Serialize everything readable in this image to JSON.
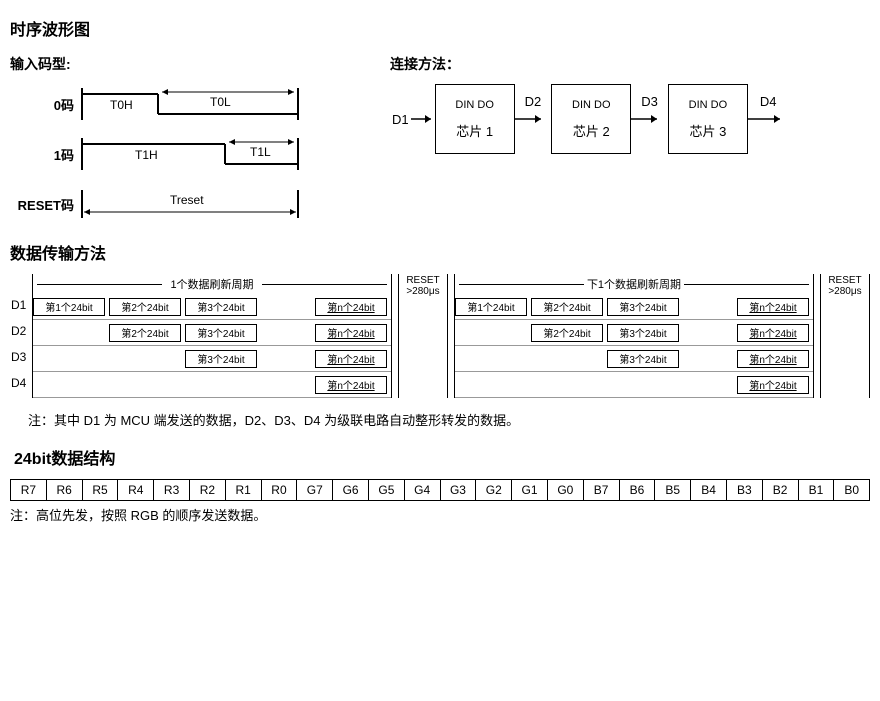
{
  "titles": {
    "timing": "时序波形图",
    "input_codes": "输入码型:",
    "connection": "连接方法：",
    "transmission": "数据传输方法",
    "bit_struct": "24bit数据结构"
  },
  "codes": {
    "code0": {
      "label": "0码",
      "high": "T0H",
      "low": "T0L",
      "high_ratio": 0.35
    },
    "code1": {
      "label": "1码",
      "high": "T1H",
      "low": "T1L",
      "high_ratio": 0.65
    },
    "reset": {
      "label": "RESET码",
      "period": "Treset"
    }
  },
  "cascade": {
    "signals": [
      "D1",
      "D2",
      "D3",
      "D4"
    ],
    "chip_pins": "DIN DO",
    "chips": [
      "芯片 1",
      "芯片 2",
      "芯片 3"
    ]
  },
  "transmission": {
    "cycle1_title": "1个数据刷新周期",
    "cycle2_title": "下1个数据刷新周期",
    "reset_label_top": "RESET",
    "reset_label_bot": ">280μs",
    "rows": [
      "D1",
      "D2",
      "D3",
      "D4"
    ],
    "packets": [
      "第1个24bit",
      "第2个24bit",
      "第3个24bit",
      "第n个24bit"
    ],
    "packet_width": 72,
    "indent_step": 76,
    "note": "注：其中 D1 为 MCU 端发送的数据，D2、D3、D4 为级联电路自动整形转发的数据。"
  },
  "bit_table": {
    "cells": [
      "R7",
      "R6",
      "R5",
      "R4",
      "R3",
      "R2",
      "R1",
      "R0",
      "G7",
      "G6",
      "G5",
      "G4",
      "G3",
      "G2",
      "G1",
      "G0",
      "B7",
      "B6",
      "B5",
      "B4",
      "B3",
      "B2",
      "B1",
      "B0"
    ],
    "note": "注：高位先发，按照 RGB 的顺序发送数据。"
  },
  "colors": {
    "line": "#000000",
    "bg": "#ffffff"
  }
}
